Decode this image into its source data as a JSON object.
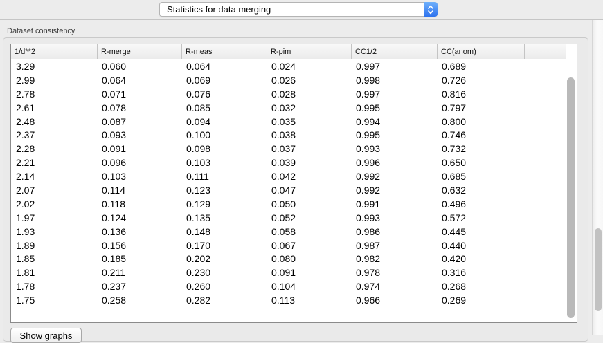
{
  "toolbar": {
    "dropdown": {
      "selected": "Statistics for data merging"
    }
  },
  "section": {
    "title": "Dataset consistency"
  },
  "table": {
    "columns": [
      "1/d**2",
      "R-merge",
      "R-meas",
      "R-pim",
      "CC1/2",
      "CC(anom)",
      ""
    ],
    "rows": [
      [
        "3.29",
        "0.060",
        "0.064",
        "0.024",
        "0.997",
        "0.689"
      ],
      [
        "2.99",
        "0.064",
        "0.069",
        "0.026",
        "0.998",
        "0.726"
      ],
      [
        "2.78",
        "0.071",
        "0.076",
        "0.028",
        "0.997",
        "0.816"
      ],
      [
        "2.61",
        "0.078",
        "0.085",
        "0.032",
        "0.995",
        "0.797"
      ],
      [
        "2.48",
        "0.087",
        "0.094",
        "0.035",
        "0.994",
        "0.800"
      ],
      [
        "2.37",
        "0.093",
        "0.100",
        "0.038",
        "0.995",
        "0.746"
      ],
      [
        "2.28",
        "0.091",
        "0.098",
        "0.037",
        "0.993",
        "0.732"
      ],
      [
        "2.21",
        "0.096",
        "0.103",
        "0.039",
        "0.996",
        "0.650"
      ],
      [
        "2.14",
        "0.103",
        "0.111",
        "0.042",
        "0.992",
        "0.685"
      ],
      [
        "2.07",
        "0.114",
        "0.123",
        "0.047",
        "0.992",
        "0.632"
      ],
      [
        "2.02",
        "0.118",
        "0.129",
        "0.050",
        "0.991",
        "0.496"
      ],
      [
        "1.97",
        "0.124",
        "0.135",
        "0.052",
        "0.993",
        "0.572"
      ],
      [
        "1.93",
        "0.136",
        "0.148",
        "0.058",
        "0.986",
        "0.445"
      ],
      [
        "1.89",
        "0.156",
        "0.170",
        "0.067",
        "0.987",
        "0.440"
      ],
      [
        "1.85",
        "0.185",
        "0.202",
        "0.080",
        "0.982",
        "0.420"
      ],
      [
        "1.81",
        "0.211",
        "0.230",
        "0.091",
        "0.978",
        "0.316"
      ],
      [
        "1.78",
        "0.237",
        "0.260",
        "0.104",
        "0.974",
        "0.268"
      ],
      [
        "1.75",
        "0.258",
        "0.282",
        "0.113",
        "0.966",
        "0.269"
      ]
    ]
  },
  "footer": {
    "show_graphs_label": "Show graphs"
  },
  "colors": {
    "accent_blue": "#2d72ee",
    "window_background": "#ececec",
    "table_border": "#8b8b8b"
  }
}
